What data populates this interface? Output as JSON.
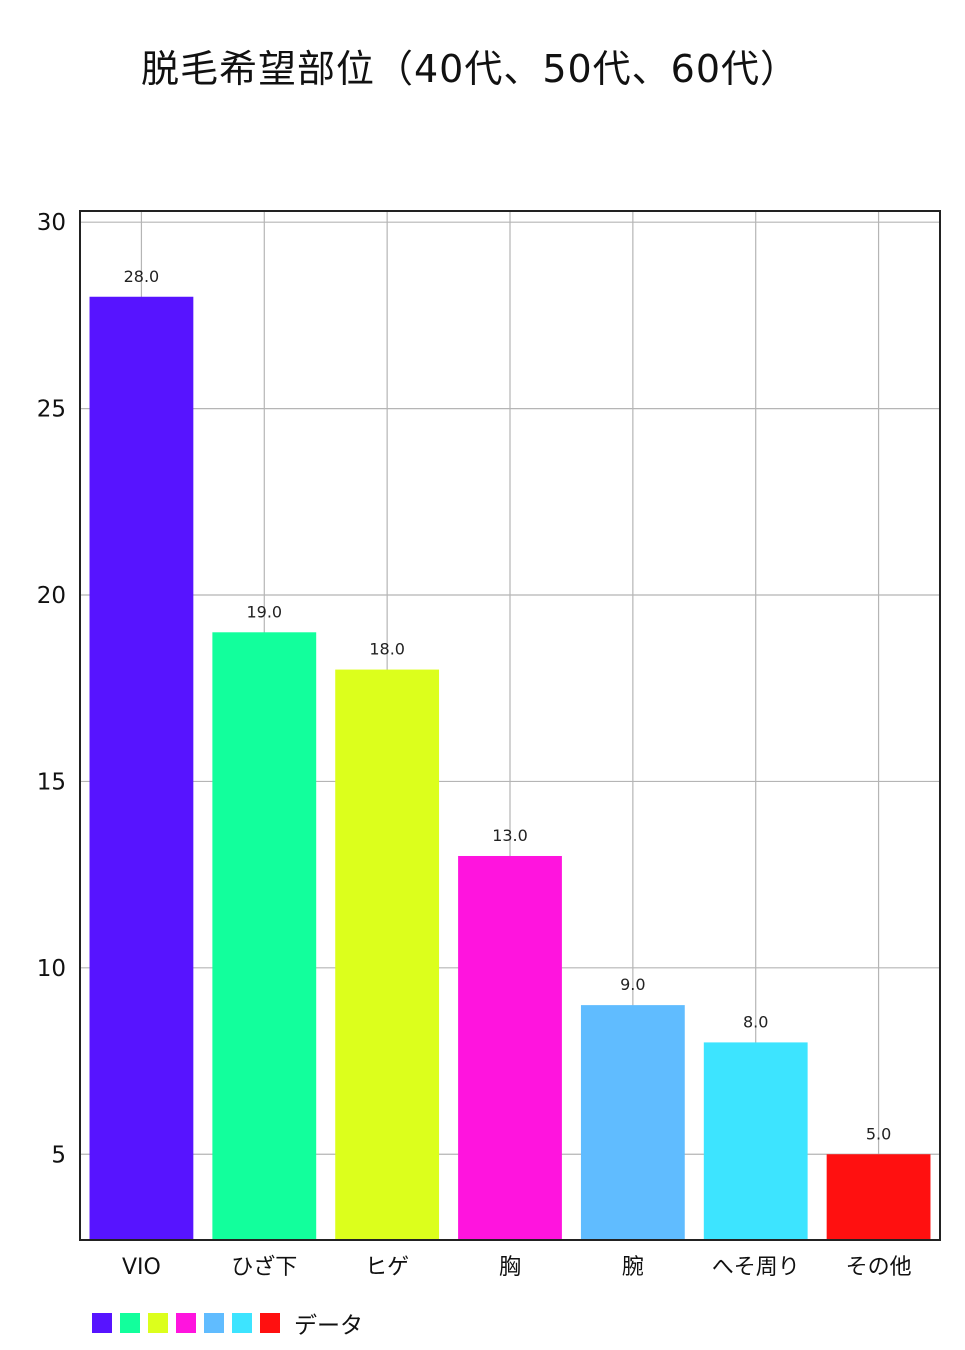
{
  "chart_data": {
    "type": "bar",
    "title": "脱毛希望部位（40代、50代、60代）",
    "categories": [
      "VIO",
      "ひざ下",
      "ヒゲ",
      "胸",
      "腕",
      "へそ周り",
      "その他"
    ],
    "series": [
      {
        "name": "データ",
        "values": [
          28.0,
          19.0,
          18.0,
          13.0,
          9.0,
          8.0,
          5.0
        ]
      }
    ],
    "data_labels": [
      "28.0",
      "19.0",
      "18.0",
      "13.0",
      "9.0",
      "8.0",
      "5.0"
    ],
    "colors": [
      "#5714ff",
      "#12ff9c",
      "#dcff1c",
      "#ff14de",
      "#60bcff",
      "#3de4ff",
      "#ff1010"
    ],
    "yticks": [
      5,
      10,
      15,
      20,
      25,
      30
    ],
    "ylim": [
      2.7,
      30.3
    ],
    "grid": true,
    "legend_position": "bottom-left",
    "xlabel": "",
    "ylabel": ""
  }
}
